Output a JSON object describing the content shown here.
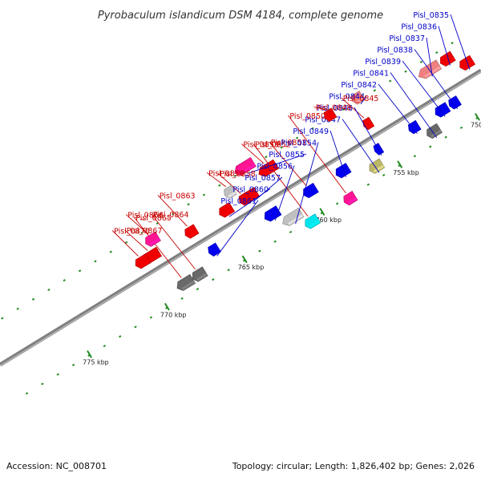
{
  "title": "Pyrobaculum islandicum DSM 4184, complete genome",
  "footer": {
    "accession": "Accession: NC_008701",
    "summary": "Topology: circular; Length: 1,826,402 bp; Genes: 2,026"
  },
  "colors": {
    "backbone": "#808080",
    "forward": "#0000ee",
    "reverse": "#ee0000",
    "blue_label": "#0000c8",
    "red_label": "#c80000",
    "tick": "#228b22"
  },
  "scale": {
    "start_kbp": 748.5,
    "end_kbp": 779.5,
    "ticks": [
      "750 kbp",
      "755 kbp",
      "760 kbp",
      "765 kbp",
      "770 kbp",
      "775 kbp"
    ]
  },
  "features": [
    {
      "name": "Pisl_0835",
      "start": 748.6,
      "end": 749.4,
      "lane": 1,
      "color": "#ee0000",
      "label": "top"
    },
    {
      "name": "Pisl_0836",
      "start": 749.4,
      "end": 750.2,
      "lane": 2,
      "color": "#ee0000",
      "label": "top"
    },
    {
      "name": "Pisl_0837",
      "start": 750.3,
      "end": 751.6,
      "lane": 2,
      "color": "#f08080",
      "label": "top"
    },
    {
      "name": "Pisl_0838",
      "start": 750.4,
      "end": 751.0,
      "lane": -1,
      "color": "#0000ee",
      "label": "top"
    },
    {
      "name": "Pisl_0839",
      "start": 751.1,
      "end": 751.9,
      "lane": -1,
      "color": "#0000ee",
      "label": "top"
    },
    {
      "name": "Pisl_0841",
      "start": 752.1,
      "end": 752.9,
      "lane": -2,
      "color": "#696969",
      "label": "top"
    },
    {
      "name": "Pisl_0842",
      "start": 753.0,
      "end": 753.6,
      "lane": -1,
      "color": "#0000ee",
      "label": "top"
    },
    {
      "name": "Pisl_0844",
      "start": 754.8,
      "end": 755.4,
      "lane": 3,
      "color": "#f08080",
      "label": "top"
    },
    {
      "name": "Pisl_0845",
      "start": 755.1,
      "end": 755.6,
      "lane": 1,
      "color": "#ee0000",
      "label": "bottom"
    },
    {
      "name": "Pisl_0846",
      "start": 755.4,
      "end": 755.8,
      "lane": -1,
      "color": "#0000ee",
      "label": "top"
    },
    {
      "name": "Pisl_0847",
      "start": 755.8,
      "end": 756.6,
      "lane": -2,
      "color": "#bdb76b",
      "label": "top"
    },
    {
      "name": "Pisl_0848",
      "start": 756.6,
      "end": 757.2,
      "lane": 3,
      "color": "#ee0000",
      "label": "bottom"
    },
    {
      "name": "Pisl_0849",
      "start": 757.5,
      "end": 758.3,
      "lane": -1,
      "color": "#0000ee",
      "label": "top"
    },
    {
      "name": "Pisl_0850",
      "start": 758.0,
      "end": 758.7,
      "lane": -3,
      "color": "#ff1493",
      "label": "bottom"
    },
    {
      "name": "Pisl_0851",
      "start": 759.6,
      "end": 760.4,
      "lane": -1,
      "color": "#0000ee",
      "label": "bottom"
    },
    {
      "name": "Pisl_0852",
      "start": 760.4,
      "end": 761.2,
      "lane": -3,
      "color": "#00e5ee",
      "label": "bottom"
    },
    {
      "name": "Pisl_0853",
      "start": 760.8,
      "end": 761.9,
      "lane": 2,
      "color": "#ee0000",
      "label": "bottom"
    },
    {
      "name": "Pisl_0854",
      "start": 761.0,
      "end": 762.2,
      "lane": -2,
      "color": "#c0c0c0",
      "label": "top"
    },
    {
      "name": "Pisl_0855",
      "start": 761.8,
      "end": 763.0,
      "lane": 3,
      "color": "#ff1493",
      "label": "top"
    },
    {
      "name": "Pisl_0856",
      "start": 762.0,
      "end": 762.9,
      "lane": -1,
      "color": "#0000ee",
      "label": "top"
    },
    {
      "name": "Pisl_0857",
      "start": 762.5,
      "end": 763.4,
      "lane": 1,
      "color": "#ee0000",
      "label": "top"
    },
    {
      "name": "Pisl_0858",
      "start": 763.0,
      "end": 763.6,
      "lane": 1,
      "color": "#ee0000",
      "label": "bottom"
    },
    {
      "name": "Pisl_0859",
      "start": 763.5,
      "end": 764.1,
      "lane": 2,
      "color": "#c0c0c0",
      "label": "bottom"
    },
    {
      "name": "Pisl_0860",
      "start": 764.1,
      "end": 764.9,
      "lane": 1,
      "color": "#ee0000",
      "label": "top"
    },
    {
      "name": "Pisl_0861",
      "start": 765.9,
      "end": 766.5,
      "lane": -1,
      "color": "#0000ee",
      "label": "top"
    },
    {
      "name": "Pisl_0863",
      "start": 766.4,
      "end": 767.1,
      "lane": 1,
      "color": "#ee0000",
      "label": "bottom"
    },
    {
      "name": "Pisl_0864",
      "start": 767.2,
      "end": 768.0,
      "lane": -2,
      "color": "#696969",
      "label": "bottom"
    },
    {
      "name": "Pisl_0865",
      "start": 768.0,
      "end": 769.0,
      "lane": -2,
      "color": "#696969",
      "label": "bottom"
    },
    {
      "name": "Pisl_0866",
      "start": 768.4,
      "end": 769.2,
      "lane": 2,
      "color": "#ff1493",
      "label": "bottom"
    },
    {
      "name": "Pisl_0867",
      "start": 768.8,
      "end": 769.8,
      "lane": 1,
      "color": "#ee0000",
      "label": "bottom"
    },
    {
      "name": "Pisl_0870",
      "start": 769.5,
      "end": 770.3,
      "lane": 1,
      "color": "#ee0000",
      "label": "bottom"
    }
  ]
}
